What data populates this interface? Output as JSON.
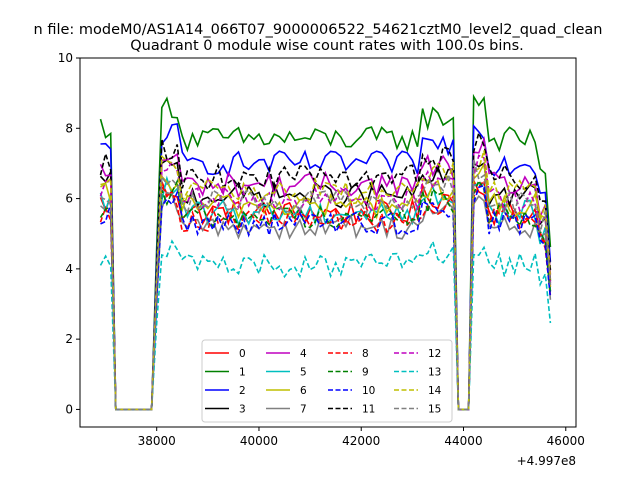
{
  "chart_data": {
    "type": "line",
    "suptitle": "n file: modeM0/AS1A14_066T07_9000006522_54621cztM0_level2_quad_clean",
    "title": "Quadrant 0 module wise count rates with 100.0s bins.",
    "xlabel": "",
    "ylabel": "",
    "x_offset_label": "+4.997e8",
    "xlim": [
      36500,
      46200
    ],
    "ylim": [
      -0.5,
      10
    ],
    "x_ticks": [
      38000,
      40000,
      42000,
      44000,
      46000
    ],
    "x_tick_labels": [
      "38000",
      "40000",
      "42000",
      "44000",
      "46000"
    ],
    "y_ticks": [
      0,
      2,
      4,
      6,
      8,
      10
    ],
    "y_tick_labels": [
      "0",
      "2",
      "4",
      "6",
      "8",
      "10"
    ],
    "x_start": 36900,
    "x_end": 45700,
    "bin": 100,
    "gaps": [
      [
        37200,
        37900
      ],
      [
        43900,
        44100
      ]
    ],
    "legend_position": "lower center",
    "grid": false,
    "series": [
      {
        "name": "0",
        "color": "#ff0000",
        "dash": "solid",
        "level": 5.6
      },
      {
        "name": "1",
        "color": "#008000",
        "dash": "solid",
        "level": 7.7
      },
      {
        "name": "2",
        "color": "#0000ff",
        "dash": "solid",
        "level": 7.0
      },
      {
        "name": "3",
        "color": "#000000",
        "dash": "solid",
        "level": 6.1
      },
      {
        "name": "4",
        "color": "#bf00bf",
        "dash": "solid",
        "level": 6.4
      },
      {
        "name": "5",
        "color": "#00bfbf",
        "dash": "solid",
        "level": 5.6
      },
      {
        "name": "6",
        "color": "#bfbf00",
        "dash": "solid",
        "level": 5.8
      },
      {
        "name": "7",
        "color": "#808080",
        "dash": "solid",
        "level": 5.2
      },
      {
        "name": "8",
        "color": "#ff0000",
        "dash": "dashed",
        "level": 5.4
      },
      {
        "name": "9",
        "color": "#008000",
        "dash": "dashed",
        "level": 5.5
      },
      {
        "name": "10",
        "color": "#0000ff",
        "dash": "dashed",
        "level": 5.3
      },
      {
        "name": "11",
        "color": "#000000",
        "dash": "dashed",
        "level": 6.6
      },
      {
        "name": "12",
        "color": "#bf00bf",
        "dash": "dashed",
        "level": 6.0
      },
      {
        "name": "13",
        "color": "#00bfbf",
        "dash": "dashed",
        "level": 4.1
      },
      {
        "name": "14",
        "color": "#bfbf00",
        "dash": "dashed",
        "level": 6.2
      },
      {
        "name": "15",
        "color": "#808080",
        "dash": "dashed",
        "level": 5.9
      }
    ]
  }
}
